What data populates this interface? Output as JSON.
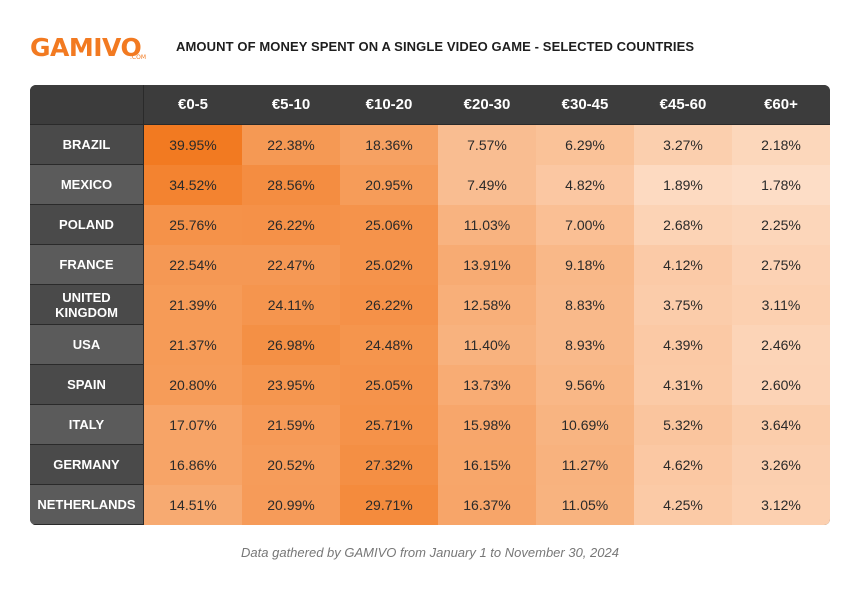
{
  "brand": {
    "name": "GAMIVO",
    "suffix": ".COM"
  },
  "colors": {
    "accent": "#f27a21",
    "header_bg": "#3c3c3c",
    "cell_low": "#fdddc6",
    "cell_high": "#f27a21"
  },
  "chart_data": {
    "type": "heatmap",
    "title": "AMOUNT OF MONEY SPENT ON A SINGLE VIDEO GAME - SELECTED COUNTRIES",
    "columns": [
      "€0-5",
      "€5-10",
      "€10-20",
      "€20-30",
      "€30-45",
      "€45-60",
      "€60+"
    ],
    "rows": [
      {
        "label": "BRAZIL",
        "values": [
          "39.95%",
          "22.38%",
          "18.36%",
          "7.57%",
          "6.29%",
          "3.27%",
          "2.18%"
        ]
      },
      {
        "label": "MEXICO",
        "values": [
          "34.52%",
          "28.56%",
          "20.95%",
          "7.49%",
          "4.82%",
          "1.89%",
          "1.78%"
        ]
      },
      {
        "label": "POLAND",
        "values": [
          "25.76%",
          "26.22%",
          "25.06%",
          "11.03%",
          "7.00%",
          "2.68%",
          "2.25%"
        ]
      },
      {
        "label": "FRANCE",
        "values": [
          "22.54%",
          "22.47%",
          "25.02%",
          "13.91%",
          "9.18%",
          "4.12%",
          "2.75%"
        ]
      },
      {
        "label": "UNITED KINGDOM",
        "values": [
          "21.39%",
          "24.11%",
          "26.22%",
          "12.58%",
          "8.83%",
          "3.75%",
          "3.11%"
        ]
      },
      {
        "label": "USA",
        "values": [
          "21.37%",
          "26.98%",
          "24.48%",
          "11.40%",
          "8.93%",
          "4.39%",
          "2.46%"
        ]
      },
      {
        "label": "SPAIN",
        "values": [
          "20.80%",
          "23.95%",
          "25.05%",
          "13.73%",
          "9.56%",
          "4.31%",
          "2.60%"
        ]
      },
      {
        "label": "ITALY",
        "values": [
          "17.07%",
          "21.59%",
          "25.71%",
          "15.98%",
          "10.69%",
          "5.32%",
          "3.64%"
        ]
      },
      {
        "label": "GERMANY",
        "values": [
          "16.86%",
          "20.52%",
          "27.32%",
          "16.15%",
          "11.27%",
          "4.62%",
          "3.26%"
        ]
      },
      {
        "label": "NETHERLANDS",
        "values": [
          "14.51%",
          "20.99%",
          "29.71%",
          "16.37%",
          "11.05%",
          "4.25%",
          "3.12%"
        ]
      }
    ]
  },
  "caption": "Data gathered by GAMIVO from January 1 to November 30, 2024"
}
